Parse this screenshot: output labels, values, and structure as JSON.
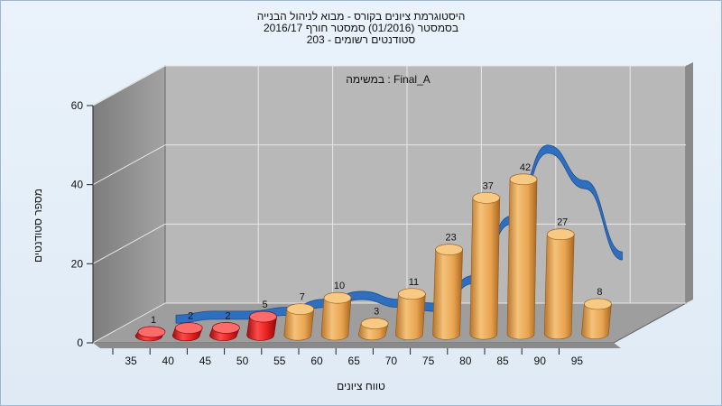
{
  "chart_data": {
    "type": "bar",
    "title_lines": [
      "היסטוגרמת ציונים בקורס - מבוא לניהול הבנייה",
      "בסמסטר  (01/2016)  סמסטר חורף 2016/17",
      "סטודנטים רשומים - 203"
    ],
    "subtitle": "במשימה : Final_A",
    "xlabel": "טווח ציונים",
    "ylabel": "מספר סטודנטים",
    "ylim": [
      0,
      60
    ],
    "yticks": [
      0,
      20,
      40,
      60
    ],
    "categories": [
      "35",
      "40",
      "45",
      "50",
      "55",
      "60",
      "65",
      "70",
      "75",
      "80",
      "85",
      "90",
      "95"
    ],
    "values": [
      1,
      2,
      2,
      5,
      7,
      10,
      3,
      11,
      23,
      37,
      42,
      27,
      8
    ],
    "failing_color": "#d81818",
    "passing_color": "#e6a24a",
    "curve_color": "#2f6fbf",
    "curve_values": [
      2,
      3,
      3,
      4,
      6,
      8,
      6,
      5,
      12,
      27,
      45,
      36,
      18
    ],
    "grid": true
  }
}
